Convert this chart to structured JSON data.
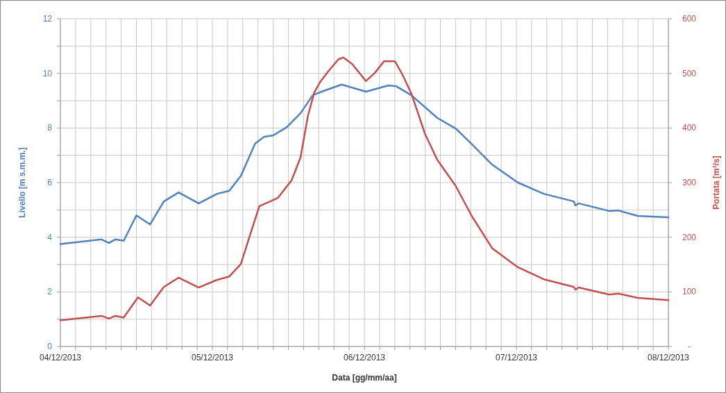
{
  "chart_data": {
    "type": "line",
    "xlabel": "Data [gg/mm/aa]",
    "ylabel": "Livello [m s.m.m.]",
    "y2label": "Portata [m³/s]",
    "xlim": [
      "2013-12-04T00:00",
      "2013-12-08T00:00"
    ],
    "xticks": [
      {
        "value": "2013-12-04T00:00",
        "label": "04/12/2013"
      },
      {
        "value": "2013-12-04T02:24",
        "label": null
      },
      {
        "value": "2013-12-04T04:48",
        "label": null
      },
      {
        "value": "2013-12-04T07:12",
        "label": null
      },
      {
        "value": "2013-12-04T09:36",
        "label": null
      },
      {
        "value": "2013-12-04T12:00",
        "label": null
      },
      {
        "value": "2013-12-04T14:24",
        "label": null
      },
      {
        "value": "2013-12-04T16:48",
        "label": null
      },
      {
        "value": "2013-12-04T19:12",
        "label": null
      },
      {
        "value": "2013-12-04T21:36",
        "label": null
      },
      {
        "value": "2013-12-05T00:00",
        "label": "05/12/2013"
      },
      {
        "value": "2013-12-05T02:24",
        "label": null
      },
      {
        "value": "2013-12-05T04:48",
        "label": null
      },
      {
        "value": "2013-12-05T07:12",
        "label": null
      },
      {
        "value": "2013-12-05T09:36",
        "label": null
      },
      {
        "value": "2013-12-05T12:00",
        "label": null
      },
      {
        "value": "2013-12-05T14:24",
        "label": null
      },
      {
        "value": "2013-12-05T16:48",
        "label": null
      },
      {
        "value": "2013-12-05T19:12",
        "label": null
      },
      {
        "value": "2013-12-05T21:36",
        "label": null
      },
      {
        "value": "2013-12-06T00:00",
        "label": "06/12/2013"
      },
      {
        "value": "2013-12-06T02:24",
        "label": null
      },
      {
        "value": "2013-12-06T04:48",
        "label": null
      },
      {
        "value": "2013-12-06T07:12",
        "label": null
      },
      {
        "value": "2013-12-06T09:36",
        "label": null
      },
      {
        "value": "2013-12-06T12:00",
        "label": null
      },
      {
        "value": "2013-12-06T14:24",
        "label": null
      },
      {
        "value": "2013-12-06T16:48",
        "label": null
      },
      {
        "value": "2013-12-06T19:12",
        "label": null
      },
      {
        "value": "2013-12-06T21:36",
        "label": null
      },
      {
        "value": "2013-12-07T00:00",
        "label": "07/12/2013"
      },
      {
        "value": "2013-12-07T02:24",
        "label": null
      },
      {
        "value": "2013-12-07T04:48",
        "label": null
      },
      {
        "value": "2013-12-07T07:12",
        "label": null
      },
      {
        "value": "2013-12-07T09:36",
        "label": null
      },
      {
        "value": "2013-12-07T12:00",
        "label": null
      },
      {
        "value": "2013-12-07T14:24",
        "label": null
      },
      {
        "value": "2013-12-07T16:48",
        "label": null
      },
      {
        "value": "2013-12-07T19:12",
        "label": null
      },
      {
        "value": "2013-12-07T21:36",
        "label": null
      },
      {
        "value": "2013-12-08T00:00",
        "label": "08/12/2013"
      }
    ],
    "ylim": [
      0,
      12
    ],
    "yticks": [
      0,
      {
        "value": 1,
        "label": null
      },
      2,
      {
        "value": 3,
        "label": null
      },
      4,
      {
        "value": 5,
        "label": null
      },
      6,
      {
        "value": 7,
        "label": null
      },
      8,
      {
        "value": 9,
        "label": null
      },
      10,
      {
        "value": 11,
        "label": null
      },
      12
    ],
    "y2lim": [
      0,
      600
    ],
    "y2ticks": [
      {
        "value": 0,
        "label": "-"
      },
      100,
      200,
      300,
      400,
      500,
      600
    ],
    "grid": true,
    "marker": "none",
    "line_style": "solid",
    "series": [
      {
        "color": "#4f81bd",
        "x": [
          "2013-12-04T00:00",
          "2013-12-04T06:30",
          "2013-12-04T07:40",
          "2013-12-04T08:40",
          "2013-12-04T10:00",
          "2013-12-04T12:00",
          "2013-12-04T14:10",
          "2013-12-04T16:20",
          "2013-12-04T18:40",
          "2013-12-04T21:50",
          "2013-12-05T00:45",
          "2013-12-05T02:40",
          "2013-12-05T04:30",
          "2013-12-05T06:45",
          "2013-12-05T08:10",
          "2013-12-05T09:36",
          "2013-12-05T11:45",
          "2013-12-05T13:55",
          "2013-12-05T15:50",
          "2013-12-05T17:15",
          "2013-12-05T20:25",
          "2013-12-06T00:15",
          "2013-12-06T03:50",
          "2013-12-06T05:00",
          "2013-12-06T07:25",
          "2013-12-06T11:30",
          "2013-12-06T14:25",
          "2013-12-06T17:00",
          "2013-12-06T20:10",
          "2013-12-07T00:15",
          "2013-12-07T04:20",
          "2013-12-07T09:05",
          "2013-12-07T09:20",
          "2013-12-07T09:50",
          "2013-12-07T14:40",
          "2013-12-07T16:05",
          "2013-12-07T19:10",
          "2013-12-08T00:00"
        ],
        "values": [
          3.75,
          3.92,
          3.79,
          3.92,
          3.87,
          4.8,
          4.47,
          5.31,
          5.64,
          5.24,
          5.59,
          5.7,
          6.25,
          7.43,
          7.68,
          7.73,
          8.03,
          8.54,
          9.2,
          9.33,
          9.59,
          9.33,
          9.56,
          9.53,
          9.2,
          8.37,
          7.98,
          7.4,
          6.66,
          6.0,
          5.59,
          5.31,
          5.16,
          5.24,
          4.96,
          4.98,
          4.78,
          4.73
        ]
      },
      {
        "color": "#c0504d",
        "axis": "y2",
        "x": [
          "2013-12-04T00:00",
          "2013-12-04T06:30",
          "2013-12-04T07:40",
          "2013-12-04T08:40",
          "2013-12-04T10:00",
          "2013-12-04T12:15",
          "2013-12-04T14:10",
          "2013-12-04T16:20",
          "2013-12-04T18:40",
          "2013-12-04T21:50",
          "2013-12-05T00:45",
          "2013-12-05T02:40",
          "2013-12-05T04:30",
          "2013-12-05T06:00",
          "2013-12-05T07:25",
          "2013-12-05T08:25",
          "2013-12-05T10:20",
          "2013-12-05T12:30",
          "2013-12-05T13:55",
          "2013-12-05T15:05",
          "2013-12-05T16:05",
          "2013-12-05T17:00",
          "2013-12-05T18:15",
          "2013-12-05T19:55",
          "2013-12-05T20:40",
          "2013-12-05T22:05",
          "2013-12-06T00:15",
          "2013-12-06T01:40",
          "2013-12-06T03:05",
          "2013-12-06T04:50",
          "2013-12-06T06:00",
          "2013-12-06T07:25",
          "2013-12-06T09:35",
          "2013-12-06T11:30",
          "2013-12-06T14:25",
          "2013-12-06T17:00",
          "2013-12-06T20:10",
          "2013-12-07T00:15",
          "2013-12-07T04:20",
          "2013-12-07T09:05",
          "2013-12-07T09:20",
          "2013-12-07T09:50",
          "2013-12-07T14:40",
          "2013-12-07T16:05",
          "2013-12-07T19:10",
          "2013-12-08T00:00"
        ],
        "values": [
          48,
          56,
          51,
          56,
          53,
          90,
          75,
          109,
          126,
          108,
          122,
          128,
          151,
          206,
          257,
          262,
          272,
          304,
          346,
          422,
          465,
          484,
          503,
          526,
          529,
          517,
          486,
          501,
          522,
          522,
          498,
          463,
          389,
          342,
          294,
          238,
          180,
          145,
          123,
          109,
          104,
          108,
          95,
          97,
          89,
          85
        ]
      }
    ]
  }
}
